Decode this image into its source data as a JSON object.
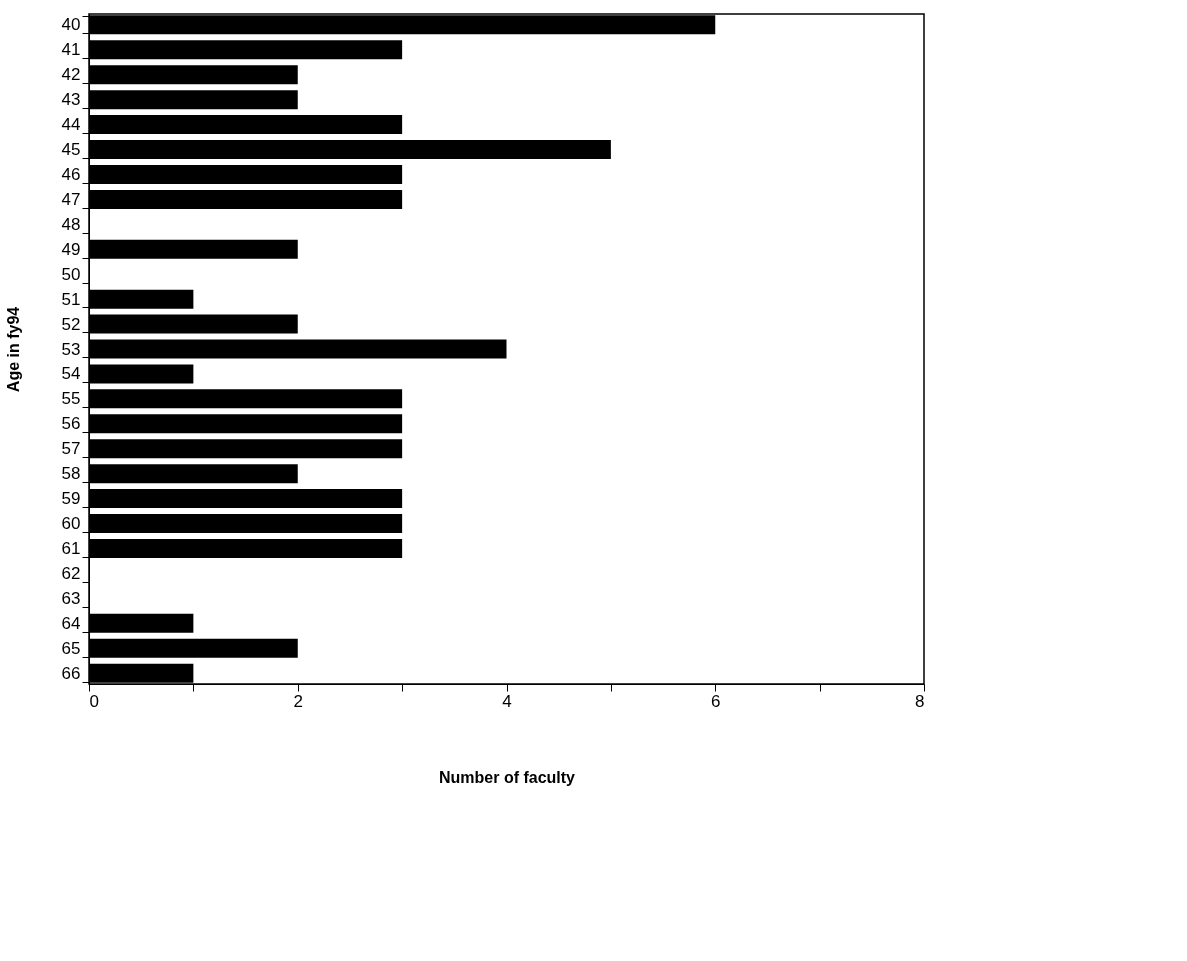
{
  "chart_data": {
    "type": "bar",
    "orientation": "horizontal",
    "xlabel": "Number of faculty",
    "ylabel": "Age in fy94",
    "categories": [
      "40",
      "41",
      "42",
      "43",
      "44",
      "45",
      "46",
      "47",
      "48",
      "49",
      "50",
      "51",
      "52",
      "53",
      "54",
      "55",
      "56",
      "57",
      "58",
      "59",
      "60",
      "61",
      "62",
      "63",
      "64",
      "65",
      "66"
    ],
    "values": [
      6,
      3,
      2,
      2,
      3,
      5,
      3,
      3,
      0,
      2,
      0,
      1,
      2,
      4,
      1,
      3,
      3,
      3,
      2,
      3,
      3,
      3,
      0,
      0,
      1,
      2,
      1
    ],
    "color": "#000000",
    "xlim": [
      0,
      8
    ],
    "xticks": [
      0,
      {
        "value": 1,
        "label": null
      },
      2,
      {
        "value": 3,
        "label": null
      },
      4,
      {
        "value": 5,
        "label": null
      },
      6,
      {
        "value": 7,
        "label": null
      },
      8
    ],
    "grid": false
  }
}
